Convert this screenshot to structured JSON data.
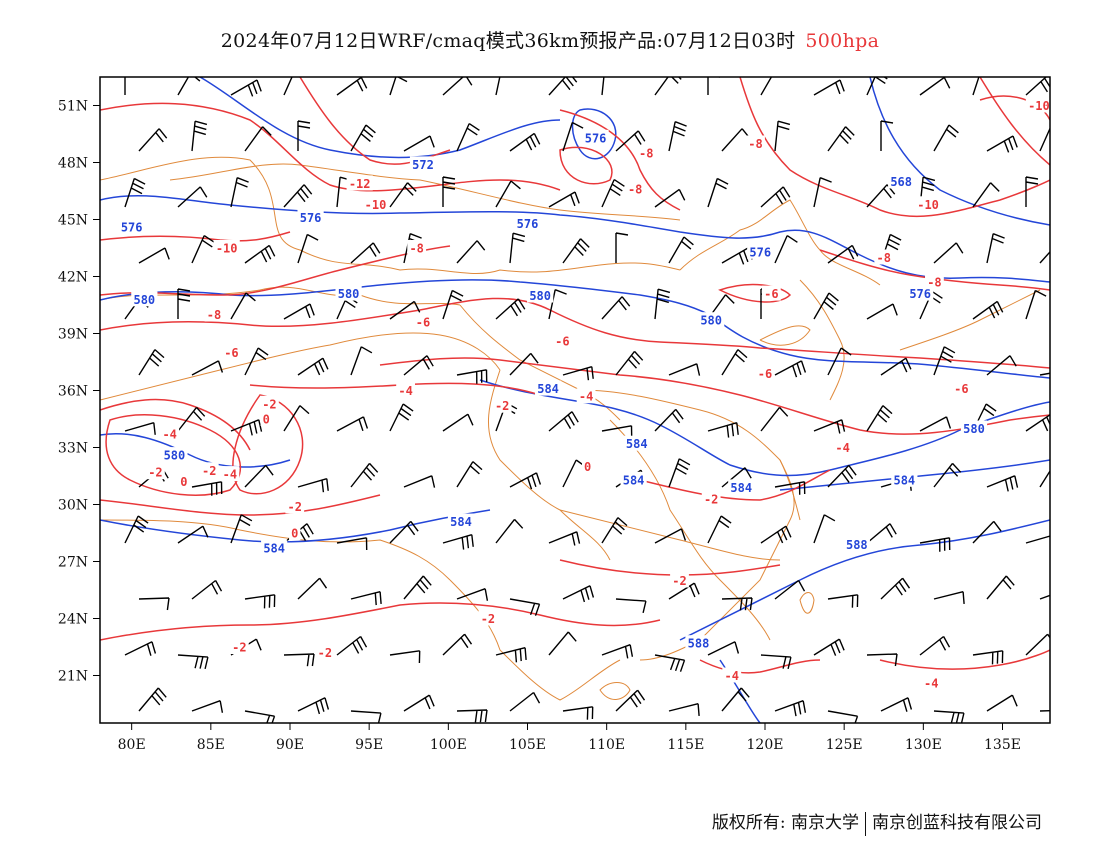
{
  "title": {
    "main": "2024年07月12日WRF/cmaq模式36km预报产品:07月12日03时",
    "level": "500hpa"
  },
  "colors": {
    "height_contour": "#2446d8",
    "temperature_contour": "#e8383a",
    "boundary": "#e08a3c",
    "wind_barb": "#000000"
  },
  "map": {
    "lon_range": [
      78,
      138
    ],
    "lat_range": [
      18.5,
      52.5
    ],
    "x_ticks": [
      "80E",
      "85E",
      "90E",
      "95E",
      "100E",
      "105E",
      "110E",
      "115E",
      "120E",
      "125E",
      "130E",
      "135E"
    ],
    "y_ticks": [
      "51N",
      "48N",
      "45N",
      "42N",
      "39N",
      "36N",
      "33N",
      "30N",
      "27N",
      "24N",
      "21N"
    ]
  },
  "height_labels": [
    {
      "text": "576",
      "lon": 80.0,
      "lat": 44.6
    },
    {
      "text": "576",
      "lon": 91.3,
      "lat": 45.1
    },
    {
      "text": "572",
      "lon": 98.4,
      "lat": 47.9
    },
    {
      "text": "576",
      "lon": 105.0,
      "lat": 44.8
    },
    {
      "text": "576",
      "lon": 109.3,
      "lat": 49.3
    },
    {
      "text": "568",
      "lon": 128.6,
      "lat": 47.0
    },
    {
      "text": "576",
      "lon": 119.7,
      "lat": 43.3
    },
    {
      "text": "576",
      "lon": 129.8,
      "lat": 41.1
    },
    {
      "text": "580",
      "lon": 80.8,
      "lat": 40.8
    },
    {
      "text": "580",
      "lon": 93.7,
      "lat": 41.1
    },
    {
      "text": "580",
      "lon": 105.8,
      "lat": 41.0
    },
    {
      "text": "580",
      "lon": 116.6,
      "lat": 39.7
    },
    {
      "text": "584",
      "lon": 106.3,
      "lat": 36.1
    },
    {
      "text": "580",
      "lon": 82.7,
      "lat": 32.6
    },
    {
      "text": "584",
      "lon": 111.9,
      "lat": 33.2
    },
    {
      "text": "584",
      "lon": 111.7,
      "lat": 31.3
    },
    {
      "text": "584",
      "lon": 118.5,
      "lat": 30.9
    },
    {
      "text": "584",
      "lon": 128.8,
      "lat": 31.3
    },
    {
      "text": "580",
      "lon": 133.2,
      "lat": 34.0
    },
    {
      "text": "584",
      "lon": 100.8,
      "lat": 29.1
    },
    {
      "text": "584",
      "lon": 89.0,
      "lat": 27.7
    },
    {
      "text": "588",
      "lon": 125.8,
      "lat": 27.9
    },
    {
      "text": "588",
      "lon": 115.8,
      "lat": 22.7
    }
  ],
  "temperature_labels": [
    {
      "text": "-12",
      "lon": 94.4,
      "lat": 46.9
    },
    {
      "text": "-10",
      "lon": 95.4,
      "lat": 45.8
    },
    {
      "text": "-10",
      "lon": 86.0,
      "lat": 43.5
    },
    {
      "text": "-8",
      "lon": 98.0,
      "lat": 43.5
    },
    {
      "text": "-8",
      "lon": 112.5,
      "lat": 48.5
    },
    {
      "text": "-8",
      "lon": 111.8,
      "lat": 46.6
    },
    {
      "text": "-8",
      "lon": 119.4,
      "lat": 49.0
    },
    {
      "text": "-10",
      "lon": 130.3,
      "lat": 45.8
    },
    {
      "text": "-10",
      "lon": 137.3,
      "lat": 51.0
    },
    {
      "text": "-8",
      "lon": 127.5,
      "lat": 43.0
    },
    {
      "text": "-8",
      "lon": 130.7,
      "lat": 41.7
    },
    {
      "text": "-6",
      "lon": 120.4,
      "lat": 41.1
    },
    {
      "text": "-8",
      "lon": 85.2,
      "lat": 40.0
    },
    {
      "text": "-6",
      "lon": 98.4,
      "lat": 39.6
    },
    {
      "text": "-6",
      "lon": 86.3,
      "lat": 38.0
    },
    {
      "text": "-6",
      "lon": 107.2,
      "lat": 38.6
    },
    {
      "text": "-6",
      "lon": 120.0,
      "lat": 36.9
    },
    {
      "text": "-6",
      "lon": 132.4,
      "lat": 36.1
    },
    {
      "text": "-4",
      "lon": 97.3,
      "lat": 36.0
    },
    {
      "text": "-2",
      "lon": 103.4,
      "lat": 35.2
    },
    {
      "text": "-4",
      "lon": 108.7,
      "lat": 35.7
    },
    {
      "text": "-2",
      "lon": 88.7,
      "lat": 35.3
    },
    {
      "text": "0",
      "lon": 88.5,
      "lat": 34.5
    },
    {
      "text": "-4",
      "lon": 82.4,
      "lat": 33.7
    },
    {
      "text": "-4",
      "lon": 124.9,
      "lat": 33.0
    },
    {
      "text": "-2",
      "lon": 81.5,
      "lat": 31.7
    },
    {
      "text": "0",
      "lon": 83.3,
      "lat": 31.2
    },
    {
      "text": "-2",
      "lon": 84.9,
      "lat": 31.8
    },
    {
      "text": "-4",
      "lon": 86.2,
      "lat": 31.6
    },
    {
      "text": "0",
      "lon": 108.8,
      "lat": 32.0
    },
    {
      "text": "-2",
      "lon": 90.3,
      "lat": 29.9
    },
    {
      "text": "0",
      "lon": 90.3,
      "lat": 28.5
    },
    {
      "text": "-2",
      "lon": 116.6,
      "lat": 30.3
    },
    {
      "text": "-2",
      "lon": 114.6,
      "lat": 26.0
    },
    {
      "text": "-2",
      "lon": 102.5,
      "lat": 24.0
    },
    {
      "text": "-2",
      "lon": 86.8,
      "lat": 22.5
    },
    {
      "text": "-2",
      "lon": 92.2,
      "lat": 22.2
    },
    {
      "text": "-4",
      "lon": 117.9,
      "lat": 21.0
    },
    {
      "text": "-4",
      "lon": 130.5,
      "lat": 20.6
    }
  ],
  "footer": {
    "left": "版权所有: 南京大学",
    "right": "南京创蓝科技有限公司"
  }
}
